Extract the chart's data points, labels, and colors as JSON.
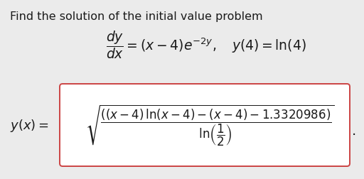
{
  "background_color": "#ebebeb",
  "title_text": "Find the solution of the initial value problem",
  "title_fontsize": 11.5,
  "ode_fontsize": 13.5,
  "solution_label_fontsize": 13,
  "solution_fontsize": 12,
  "box_edgecolor": "#cc4444",
  "box_facecolor": "#ffffff",
  "text_color": "#1a1a1a"
}
